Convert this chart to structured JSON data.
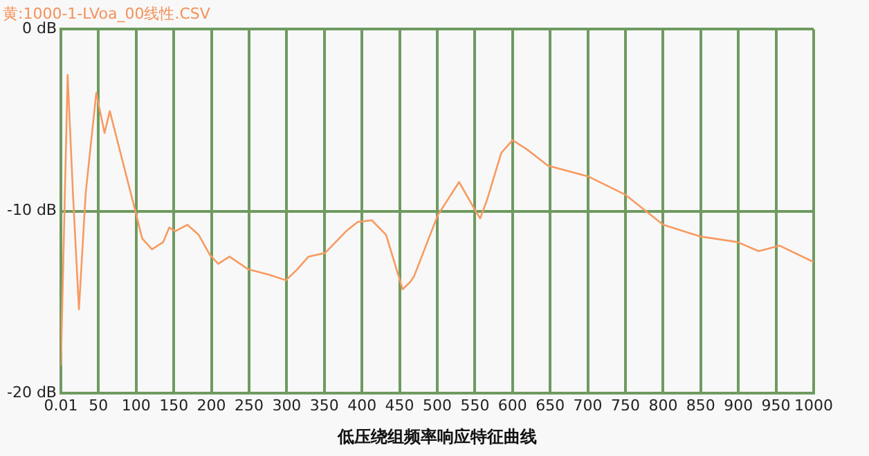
{
  "chart_data": {
    "type": "line",
    "title": "黄:1000-1-LVoa_00线性.CSV",
    "xlabel": "低压绕组频率响应特征曲线",
    "x": [
      0.01,
      9,
      16,
      24,
      33,
      47,
      58,
      65,
      99,
      108,
      121,
      136,
      144,
      152,
      168,
      183,
      198,
      209,
      224,
      249,
      277,
      299,
      314,
      329,
      351,
      379,
      394,
      413,
      432,
      454,
      464,
      469,
      499,
      501,
      529,
      551,
      557,
      566,
      585,
      600,
      619,
      647,
      701,
      750,
      800,
      850,
      899,
      927,
      955,
      1000
    ],
    "series": [
      {
        "color": "#f79a60",
        "values": [
          -18.5,
          -2.5,
          -9,
          -15.4,
          -9,
          -3.5,
          -5.7,
          -4.5,
          -10,
          -11.5,
          -12.1,
          -11.7,
          -10.9,
          -11.1,
          -10.75,
          -11.3,
          -12.4,
          -12.9,
          -12.5,
          -13.2,
          -13.5,
          -13.8,
          -13.2,
          -12.5,
          -12.3,
          -11.1,
          -10.6,
          -10.5,
          -11.3,
          -14.3,
          -13.9,
          -13.6,
          -10.4,
          -10.2,
          -8.4,
          -10,
          -10.4,
          -9.4,
          -6.8,
          -6.1,
          -6.6,
          -7.5,
          -8.1,
          -9.1,
          -10.75,
          -11.4,
          -11.7,
          -12.2,
          -11.9,
          -12.8
        ]
      }
    ],
    "xlim": [
      0.01,
      1000
    ],
    "xticks": [
      0.01,
      50,
      100,
      150,
      200,
      250,
      300,
      350,
      400,
      450,
      500,
      550,
      600,
      650,
      700,
      750,
      800,
      850,
      900,
      950,
      1000
    ],
    "ylim": [
      -20,
      0
    ],
    "yticks": [
      {
        "value": 0,
        "label": "0 dB"
      },
      {
        "value": -10,
        "label": "-10 dB"
      },
      {
        "value": -20,
        "label": "-20 dB"
      }
    ],
    "grid": true,
    "legend": false,
    "marker": "none",
    "line_style": "solid"
  }
}
